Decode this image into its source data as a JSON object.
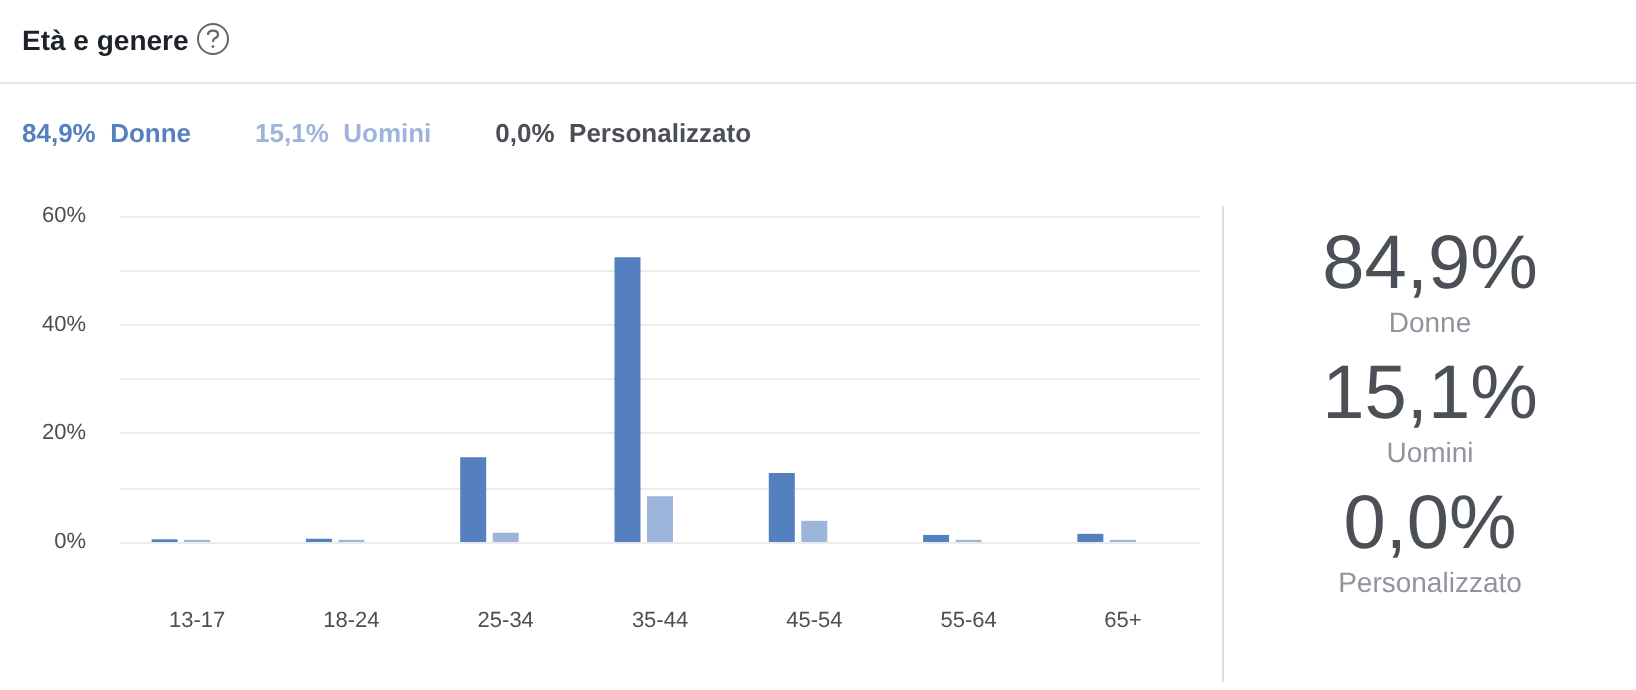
{
  "chart_data": [
    {
      "type": "bar",
      "title": "Età e genere",
      "categories": [
        "13-17",
        "18-24",
        "25-34",
        "35-44",
        "45-54",
        "55-64",
        "65+"
      ],
      "series": [
        {
          "name": "Donne",
          "color": "#5580bf",
          "values": [
            0.5,
            0.6,
            15.6,
            52.4,
            12.7,
            1.3,
            1.5
          ]
        },
        {
          "name": "Uomini",
          "color": "#9db4db",
          "values": [
            0.4,
            0.4,
            1.7,
            8.4,
            3.9,
            0.4,
            0.4
          ]
        },
        {
          "name": "Personalizzato",
          "color": "#8c8f96",
          "values": [
            0.0,
            0.0,
            0.0,
            0.0,
            0.0,
            0.0,
            0.0
          ]
        }
      ],
      "annotations": [
        "84,9%",
        "15,1%",
        "0,0%"
      ],
      "ylim": [
        0,
        60
      ],
      "yticks": [
        {
          "value": 0,
          "label": "0%"
        },
        {
          "value": 20,
          "label": "20%"
        },
        {
          "value": 40,
          "label": "40%"
        },
        {
          "value": 60,
          "label": "60%"
        }
      ],
      "grid": "y"
    },
    {
      "type": "other",
      "categories": [
        "Donne",
        "Uomini",
        "Personalizzato"
      ],
      "annotations": [
        "84,9%",
        "15,1%",
        "0,0%"
      ]
    }
  ]
}
